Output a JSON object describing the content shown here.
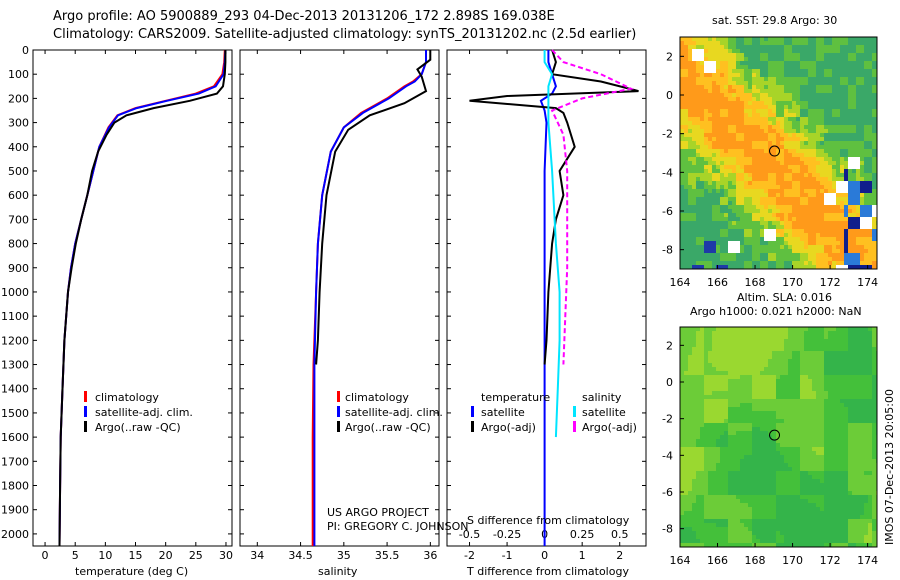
{
  "header": {
    "line1": "Argo profile: AO 5900889_293 04-Dec-2013 20131206_172 2.898S 169.038E",
    "line2": "Climatology: CARS2009. Satellite-adjusted climatology: synTS_20131202.nc (2.5d earlier)"
  },
  "credit": {
    "project": "US ARGO PROJECT",
    "pi": "PI: GREGORY C. JOHNSON"
  },
  "watermark": "IMOS 07-Dec-2013 20:05:00",
  "colors": {
    "climatology": "#ff0000",
    "satellite": "#0000ff",
    "argo": "#000000",
    "sal_satellite": "#00e5ff",
    "sal_argo": "#ff00ff"
  },
  "chart_data": [
    {
      "id": "temperature",
      "type": "line",
      "xlabel": "temperature (deg C)",
      "ylim": [
        2050,
        0
      ],
      "xlim": [
        -2,
        31
      ],
      "xticks": [
        0,
        5,
        10,
        15,
        20,
        25,
        30
      ],
      "yticks": [
        0,
        100,
        200,
        300,
        400,
        500,
        600,
        700,
        800,
        900,
        1000,
        1100,
        1200,
        1300,
        1400,
        1500,
        1600,
        1700,
        1800,
        1900,
        2000
      ],
      "legend": [
        "climatology",
        "satellite-adj. clim.",
        "Argo(..raw -QC)"
      ],
      "series": [
        {
          "name": "climatology",
          "x": [
            29.8,
            29.7,
            29.4,
            28.0,
            25.0,
            20.0,
            15.0,
            12.0,
            10.5,
            9.0,
            8.0,
            7.0,
            6.0,
            5.0,
            4.3,
            3.8,
            3.2,
            2.9,
            2.6,
            2.5,
            2.4
          ],
          "y": [
            0,
            50,
            100,
            150,
            180,
            210,
            240,
            270,
            320,
            400,
            500,
            600,
            700,
            800,
            900,
            1000,
            1200,
            1400,
            1600,
            1800,
            2050
          ]
        },
        {
          "name": "satellite-adj. clim.",
          "x": [
            29.9,
            29.8,
            29.6,
            28.3,
            25.5,
            20.2,
            15.2,
            12.1,
            10.6,
            9.0,
            8.0,
            7.0,
            6.0,
            5.0,
            4.3,
            3.8,
            3.2,
            2.9,
            2.6,
            2.5,
            2.4
          ],
          "y": [
            0,
            50,
            100,
            150,
            180,
            210,
            240,
            270,
            320,
            400,
            500,
            600,
            700,
            800,
            900,
            1000,
            1200,
            1400,
            1600,
            1800,
            2050
          ]
        },
        {
          "name": "Argo(..raw -QC)",
          "x": [
            29.9,
            29.9,
            29.8,
            29.5,
            28.5,
            24.0,
            18.0,
            13.5,
            11.5,
            10.2,
            8.8,
            7.8,
            7.0,
            6.0,
            5.1,
            4.4,
            3.8,
            3.2,
            2.9,
            2.6,
            2.5,
            2.4
          ],
          "y": [
            0,
            50,
            100,
            150,
            180,
            210,
            240,
            270,
            300,
            350,
            420,
            500,
            600,
            700,
            800,
            900,
            1000,
            1200,
            1400,
            1600,
            1800,
            2050
          ]
        }
      ]
    },
    {
      "id": "salinity",
      "type": "line",
      "xlabel": "salinity",
      "ylim": [
        2050,
        0
      ],
      "xlim": [
        33.8,
        36.1
      ],
      "xticks": [
        34,
        34.5,
        35,
        35.5,
        36
      ],
      "legend": [
        "climatology",
        "satellite-adj. clim.",
        "Argo(..raw -QC)"
      ],
      "series": [
        {
          "name": "climatology",
          "x": [
            35.95,
            35.95,
            35.9,
            35.8,
            35.7,
            35.5,
            35.2,
            35.0,
            34.85,
            34.75,
            34.7,
            34.68,
            34.65,
            34.64,
            34.64,
            34.64
          ],
          "y": [
            0,
            50,
            100,
            130,
            150,
            200,
            260,
            320,
            420,
            600,
            800,
            1000,
            1300,
            1600,
            1900,
            2050
          ]
        },
        {
          "name": "satellite-adj. clim.",
          "x": [
            35.95,
            35.95,
            35.9,
            35.82,
            35.72,
            35.52,
            35.22,
            35.0,
            34.85,
            34.75,
            34.7,
            34.68,
            34.66,
            34.66,
            34.66,
            34.66
          ],
          "y": [
            0,
            50,
            100,
            130,
            150,
            200,
            260,
            320,
            420,
            600,
            800,
            1000,
            1300,
            1600,
            1900,
            2050
          ]
        },
        {
          "name": "Argo(..raw -QC)",
          "x": [
            36.0,
            36.0,
            35.85,
            35.9,
            35.95,
            35.7,
            35.3,
            35.05,
            34.9,
            34.8,
            34.75,
            34.72,
            34.7,
            34.68
          ],
          "y": [
            0,
            40,
            80,
            110,
            170,
            220,
            270,
            330,
            420,
            600,
            800,
            1000,
            1200,
            1300
          ]
        }
      ]
    },
    {
      "id": "difference",
      "type": "line",
      "xlabel": "T difference from climatology",
      "xlabel2": "S difference from climatology",
      "ylim": [
        2050,
        0
      ],
      "xlim": [
        -2.6,
        2.7
      ],
      "xticks": [
        -2,
        -1,
        0,
        1,
        2
      ],
      "xticks_top_labels": [
        "-0.5",
        "-0.25",
        "0",
        "0.25",
        "0.5"
      ],
      "legend_title_t": "temperature",
      "legend_title_s": "salinity",
      "legend_t": [
        "satellite",
        "Argo(-adj)"
      ],
      "legend_s": [
        "satellite",
        "Argo(-adj)"
      ],
      "series": [
        {
          "name": "T satellite",
          "x": [
            0.1,
            0.1,
            0.2,
            0.3,
            0.2,
            -0.1,
            0.0,
            0.05,
            0.0,
            0.0,
            0.0,
            0.0,
            0.0
          ],
          "y": [
            0,
            50,
            100,
            150,
            180,
            210,
            250,
            300,
            500,
            800,
            1200,
            1600,
            2050
          ]
        },
        {
          "name": "T Argo(-adj)",
          "x": [
            0.2,
            0.3,
            0.2,
            1.5,
            2.5,
            -1.0,
            -2.0,
            0.3,
            0.5,
            0.6,
            0.8,
            0.4,
            0.5,
            0.3,
            0.2,
            0.1,
            0.05,
            0.0
          ],
          "y": [
            0,
            50,
            100,
            130,
            170,
            190,
            210,
            240,
            260,
            300,
            400,
            500,
            600,
            700,
            800,
            1000,
            1200,
            1300
          ]
        },
        {
          "name": "S satellite",
          "x": [
            0.0,
            0.0,
            0.2,
            0.1,
            0.1,
            0.1,
            0.2,
            0.3,
            0.4,
            0.4,
            0.35,
            0.3
          ],
          "y": [
            0,
            50,
            100,
            150,
            200,
            300,
            500,
            800,
            1000,
            1200,
            1400,
            1600
          ]
        },
        {
          "name": "S Argo(-adj)",
          "x": [
            0.2,
            0.5,
            1.5,
            2.3,
            1.0,
            0.2,
            0.5,
            0.6,
            0.6,
            0.6,
            0.55,
            0.5
          ],
          "y": [
            0,
            50,
            100,
            160,
            200,
            250,
            350,
            500,
            700,
            900,
            1100,
            1300
          ]
        }
      ]
    },
    {
      "id": "sst_map",
      "type": "heatmap",
      "title": "sat. SST: 29.8 Argo: 30",
      "xlim": [
        164,
        174.5
      ],
      "ylim": [
        -9,
        3
      ],
      "xticks": [
        164,
        166,
        168,
        170,
        172,
        174
      ],
      "yticks": [
        2,
        0,
        -2,
        -4,
        -6,
        -8
      ],
      "marker": {
        "lon": 169.038,
        "lat": -2.898
      }
    },
    {
      "id": "sla_map",
      "type": "heatmap",
      "title": "Altim. SLA: 0.016",
      "subtitle": "Argo h1000: 0.021 h2000: NaN",
      "xlim": [
        164,
        174.5
      ],
      "ylim": [
        -9,
        3
      ],
      "xticks": [
        164,
        166,
        168,
        170,
        172,
        174
      ],
      "yticks": [
        2,
        0,
        -2,
        -4,
        -6,
        -8
      ],
      "marker": {
        "lon": 169.038,
        "lat": -2.898
      }
    }
  ]
}
